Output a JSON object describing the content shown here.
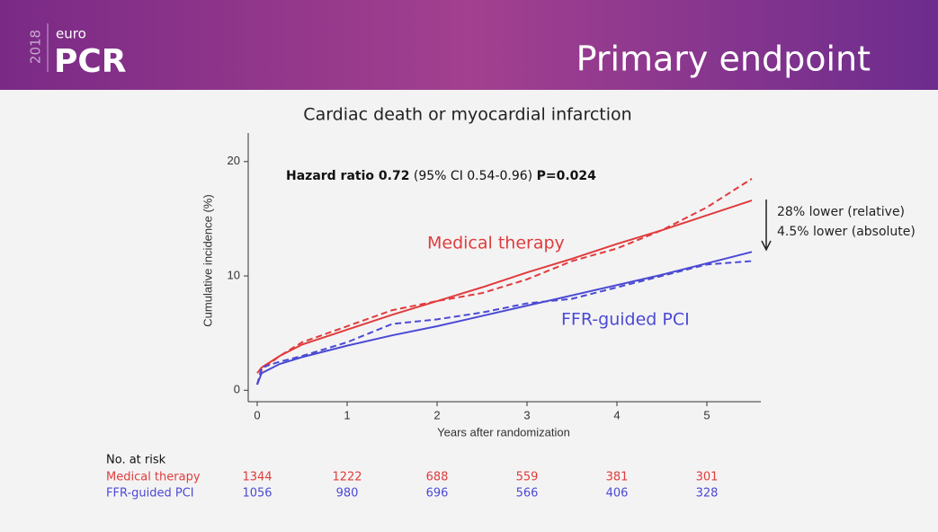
{
  "header": {
    "year": "2018",
    "brand_small": "euro",
    "brand": "PCR",
    "title": "Primary endpoint"
  },
  "chart_data": {
    "type": "line",
    "title": "Cardiac death or myocardial infarction",
    "ylabel": "Cumulative incidence (%)",
    "xlabel": "Years after randomization",
    "x": [
      0,
      0.05,
      0.25,
      0.5,
      1,
      1.5,
      2,
      2.5,
      3,
      3.5,
      4,
      4.5,
      5,
      5.5
    ],
    "series": [
      {
        "name": "Medical therapy",
        "color": "#e03c3c",
        "values": [
          1.5,
          2.0,
          3.0,
          4.0,
          5.3,
          6.6,
          7.8,
          9.0,
          10.3,
          11.5,
          12.8,
          14.0,
          15.3,
          16.6
        ],
        "km_values": [
          0.5,
          1.8,
          3.0,
          4.2,
          5.6,
          7.0,
          7.8,
          8.5,
          9.7,
          11.3,
          12.4,
          14.0,
          16.0,
          18.5
        ]
      },
      {
        "name": "FFR-guided PCI",
        "color": "#4a4ad4",
        "values": [
          0.5,
          1.5,
          2.3,
          2.9,
          3.9,
          4.8,
          5.6,
          6.5,
          7.4,
          8.3,
          9.2,
          10.1,
          11.1,
          12.1
        ],
        "km_values": [
          0.5,
          2.0,
          2.5,
          3.0,
          4.2,
          5.8,
          6.2,
          6.8,
          7.6,
          8.0,
          9.0,
          10.0,
          11.0,
          11.3
        ]
      }
    ],
    "xlim": [
      -0.1,
      5.6
    ],
    "xticks": [
      0,
      1,
      2,
      3,
      4,
      5
    ],
    "ylim": [
      -1,
      22.5
    ],
    "yticks": [
      0,
      10,
      20
    ],
    "annotations": {
      "hr_label": "Hazard ratio 0.72",
      "hr_ci": "(95% CI 0.54-0.96)",
      "hr_p": "P=0.024",
      "relative": "28%  lower (relative)",
      "absolute": "4.5% lower (absolute)"
    }
  },
  "at_risk": {
    "title": "No. at risk",
    "rows": [
      {
        "name": "Medical therapy",
        "color": "#e03c3c",
        "values": [
          "1344",
          "1222",
          "688",
          "559",
          "381",
          "301"
        ]
      },
      {
        "name": "FFR-guided PCI",
        "color": "#4a4ad4",
        "values": [
          "1056",
          "980",
          "696",
          "566",
          "406",
          "328"
        ]
      }
    ]
  }
}
